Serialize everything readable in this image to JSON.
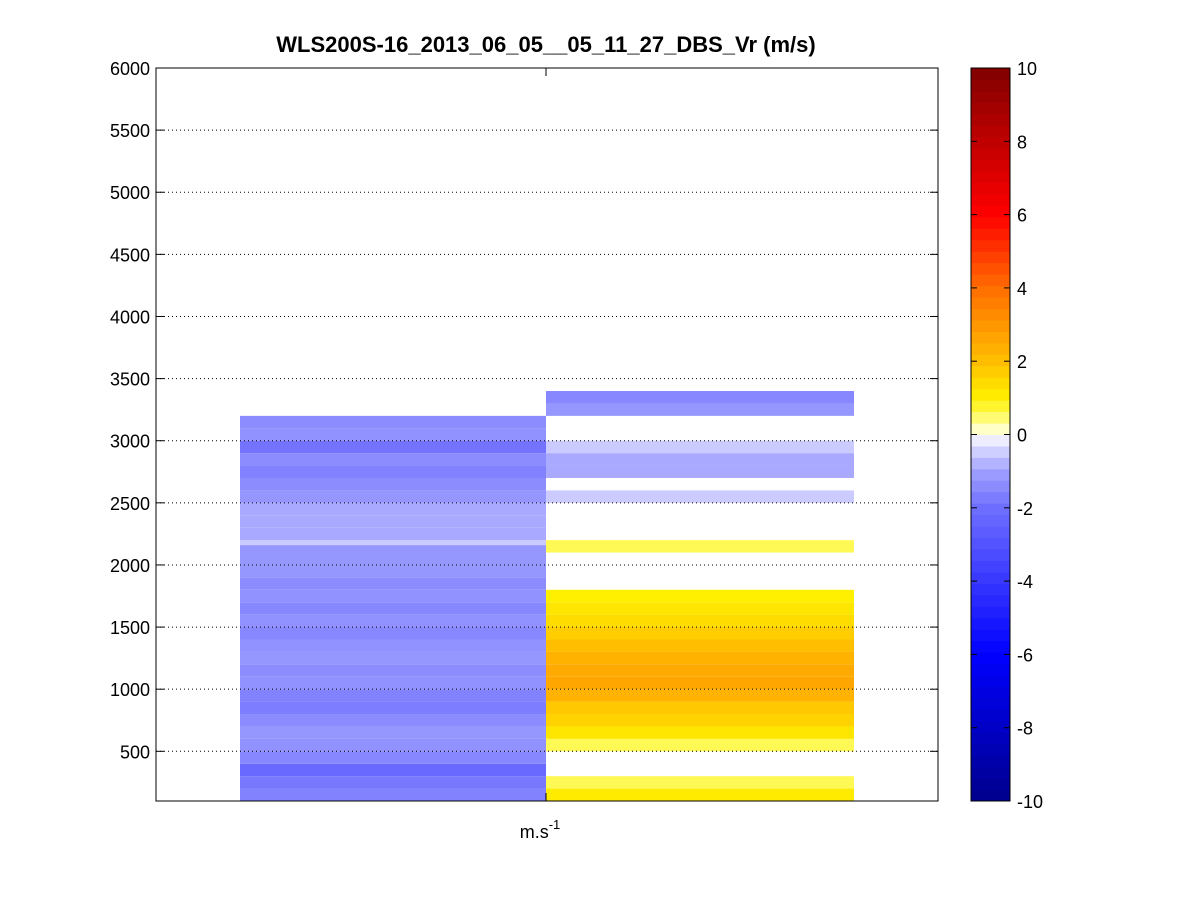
{
  "chart_data": {
    "type": "heatmap",
    "title": "WLS200S-16_2013_06_05__05_11_27_DBS_Vr (m/s)",
    "xlabel": "m.s",
    "xlabel_superscript": "-1",
    "ylabel": "",
    "ylim": [
      100,
      6000
    ],
    "yticks": [
      500,
      1000,
      1500,
      2000,
      2500,
      3000,
      3500,
      4000,
      4500,
      5000,
      5500,
      6000
    ],
    "grid": "y-dotted",
    "colorbar": {
      "min": -10,
      "max": 10,
      "ticks": [
        -10,
        -8,
        -6,
        -4,
        -2,
        0,
        2,
        4,
        6,
        8,
        10
      ],
      "position": "right"
    },
    "columns": [
      {
        "cells": [
          {
            "y0": 100,
            "y1": 200,
            "v": -1.6
          },
          {
            "y0": 200,
            "y1": 300,
            "v": -1.8
          },
          {
            "y0": 300,
            "y1": 400,
            "v": -2.2
          },
          {
            "y0": 400,
            "y1": 500,
            "v": -1.5
          },
          {
            "y0": 500,
            "y1": 600,
            "v": -1.3
          },
          {
            "y0": 600,
            "y1": 700,
            "v": -1.2
          },
          {
            "y0": 700,
            "y1": 800,
            "v": -1.4
          },
          {
            "y0": 800,
            "y1": 900,
            "v": -1.7
          },
          {
            "y0": 900,
            "y1": 1000,
            "v": -1.6
          },
          {
            "y0": 1000,
            "y1": 1100,
            "v": -1.3
          },
          {
            "y0": 1100,
            "y1": 1200,
            "v": -1.4
          },
          {
            "y0": 1200,
            "y1": 1300,
            "v": -1.2
          },
          {
            "y0": 1300,
            "y1": 1400,
            "v": -1.3
          },
          {
            "y0": 1400,
            "y1": 1500,
            "v": -1.5
          },
          {
            "y0": 1500,
            "y1": 1600,
            "v": -1.3
          },
          {
            "y0": 1600,
            "y1": 1700,
            "v": -1.5
          },
          {
            "y0": 1700,
            "y1": 1800,
            "v": -1.3
          },
          {
            "y0": 1800,
            "y1": 1900,
            "v": -1.4
          },
          {
            "y0": 1900,
            "y1": 2000,
            "v": -1.2
          },
          {
            "y0": 2000,
            "y1": 2100,
            "v": -1.2
          },
          {
            "y0": 2100,
            "y1": 2160,
            "v": -1.2
          },
          {
            "y0": 2160,
            "y1": 2200,
            "v": -0.5
          },
          {
            "y0": 2200,
            "y1": 2300,
            "v": -0.9
          },
          {
            "y0": 2300,
            "y1": 2400,
            "v": -0.9
          },
          {
            "y0": 2400,
            "y1": 2500,
            "v": -0.9
          },
          {
            "y0": 2500,
            "y1": 2600,
            "v": -1.2
          },
          {
            "y0": 2600,
            "y1": 2700,
            "v": -1.4
          },
          {
            "y0": 2700,
            "y1": 2800,
            "v": -1.6
          },
          {
            "y0": 2800,
            "y1": 2900,
            "v": -1.4
          },
          {
            "y0": 2900,
            "y1": 3000,
            "v": -1.9
          },
          {
            "y0": 3000,
            "y1": 3100,
            "v": -1.3
          },
          {
            "y0": 3100,
            "y1": 3200,
            "v": -1.4
          }
        ]
      },
      {
        "cells": [
          {
            "y0": 100,
            "y1": 200,
            "v": 1.1
          },
          {
            "y0": 200,
            "y1": 300,
            "v": 0.6
          },
          {
            "y0": 500,
            "y1": 600,
            "v": 0.6
          },
          {
            "y0": 600,
            "y1": 700,
            "v": 1.2
          },
          {
            "y0": 700,
            "y1": 800,
            "v": 1.6
          },
          {
            "y0": 800,
            "y1": 900,
            "v": 1.8
          },
          {
            "y0": 900,
            "y1": 1000,
            "v": 2.3
          },
          {
            "y0": 1000,
            "y1": 1100,
            "v": 2.6
          },
          {
            "y0": 1100,
            "y1": 1200,
            "v": 2.5
          },
          {
            "y0": 1200,
            "y1": 1300,
            "v": 2.3
          },
          {
            "y0": 1300,
            "y1": 1400,
            "v": 2.0
          },
          {
            "y0": 1400,
            "y1": 1500,
            "v": 1.7
          },
          {
            "y0": 1500,
            "y1": 1600,
            "v": 1.4
          },
          {
            "y0": 1600,
            "y1": 1700,
            "v": 1.2
          },
          {
            "y0": 1700,
            "y1": 1800,
            "v": 1.0
          },
          {
            "y0": 2100,
            "y1": 2200,
            "v": 0.6
          },
          {
            "y0": 2500,
            "y1": 2600,
            "v": -0.5
          },
          {
            "y0": 2700,
            "y1": 2800,
            "v": -0.9
          },
          {
            "y0": 2800,
            "y1": 2900,
            "v": -0.9
          },
          {
            "y0": 2900,
            "y1": 3000,
            "v": -0.5
          },
          {
            "y0": 3200,
            "y1": 3300,
            "v": -1.2
          },
          {
            "y0": 3300,
            "y1": 3400,
            "v": -1.5
          }
        ]
      }
    ]
  }
}
